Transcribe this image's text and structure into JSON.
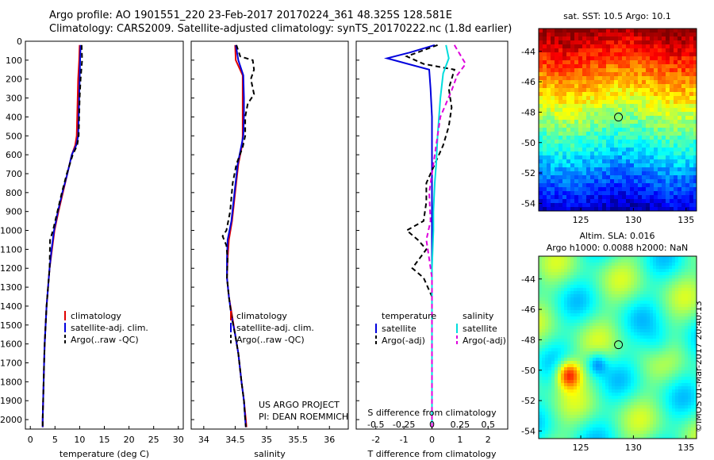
{
  "header": {
    "line1": "Argo profile: AO 1901551_220 23-Feb-2017 20170224_361 48.325S 128.581E",
    "line2": "Climatology: CARS2009. Satellite-adjusted climatology: synTS_20170222.nc (1.8d earlier)"
  },
  "credit": "©IMOS 01-Mar-2017 20:40:13",
  "project": {
    "line1": "US ARGO PROJECT",
    "line2": "PI: DEAN ROEMMICH"
  },
  "colors": {
    "climatology": "#e00000",
    "satellite": "#0000dd",
    "argo": "#000000",
    "sal_satellite": "#00dddd",
    "sal_argo": "#dd00dd"
  },
  "chart_data": [
    {
      "type": "line",
      "panel": "temperature",
      "xlabel": "temperature (deg C)",
      "ylabel": "",
      "xlim": [
        -1,
        31
      ],
      "ylim": [
        2050,
        0
      ],
      "xticks": [
        "0",
        "5",
        "10",
        "15",
        "20",
        "25",
        "30"
      ],
      "yticks": [
        "0",
        "100",
        "200",
        "300",
        "400",
        "500",
        "600",
        "700",
        "800",
        "900",
        "1000",
        "1100",
        "1200",
        "1300",
        "1400",
        "1500",
        "1600",
        "1700",
        "1800",
        "1900",
        "2000"
      ],
      "legend": [
        "climatology",
        "satellite-adj. clim.",
        "Argo(..raw -QC)"
      ],
      "series": [
        {
          "name": "climatology",
          "points": [
            [
              10.0,
              20
            ],
            [
              9.9,
              100
            ],
            [
              9.7,
              200
            ],
            [
              9.6,
              300
            ],
            [
              9.5,
              400
            ],
            [
              9.4,
              500
            ],
            [
              9.1,
              550
            ],
            [
              8.4,
              600
            ],
            [
              7.5,
              700
            ],
            [
              6.6,
              800
            ],
            [
              5.7,
              900
            ],
            [
              4.9,
              1000
            ],
            [
              4.4,
              1100
            ],
            [
              3.9,
              1200
            ],
            [
              3.6,
              1300
            ],
            [
              3.3,
              1400
            ],
            [
              3.1,
              1500
            ],
            [
              2.9,
              1600
            ],
            [
              2.8,
              1700
            ],
            [
              2.7,
              1800
            ],
            [
              2.6,
              1900
            ],
            [
              2.5,
              2000
            ],
            [
              2.5,
              2040
            ]
          ]
        },
        {
          "name": "satellite-adj. clim.",
          "points": [
            [
              10.2,
              20
            ],
            [
              10.1,
              100
            ],
            [
              10.0,
              200
            ],
            [
              9.9,
              300
            ],
            [
              9.8,
              400
            ],
            [
              9.7,
              500
            ],
            [
              9.3,
              550
            ],
            [
              8.4,
              600
            ],
            [
              7.5,
              700
            ],
            [
              6.5,
              800
            ],
            [
              5.6,
              900
            ],
            [
              4.8,
              1000
            ],
            [
              4.3,
              1100
            ],
            [
              3.9,
              1200
            ],
            [
              3.6,
              1300
            ],
            [
              3.3,
              1400
            ],
            [
              3.1,
              1500
            ],
            [
              2.9,
              1600
            ],
            [
              2.8,
              1700
            ],
            [
              2.7,
              1800
            ],
            [
              2.6,
              1900
            ],
            [
              2.5,
              2000
            ],
            [
              2.5,
              2040
            ]
          ]
        },
        {
          "name": "Argo(..raw -QC)",
          "points": [
            [
              10.4,
              20
            ],
            [
              10.5,
              100
            ],
            [
              10.2,
              200
            ],
            [
              10.0,
              300
            ],
            [
              9.9,
              400
            ],
            [
              9.8,
              500
            ],
            [
              9.5,
              550
            ],
            [
              8.6,
              600
            ],
            [
              7.4,
              700
            ],
            [
              6.4,
              800
            ],
            [
              5.5,
              900
            ],
            [
              4.6,
              1000
            ],
            [
              4.0,
              1050
            ],
            [
              3.9,
              1200
            ],
            [
              3.6,
              1300
            ],
            [
              3.3,
              1400
            ],
            [
              3.1,
              1500
            ],
            [
              2.9,
              1600
            ],
            [
              2.8,
              1700
            ],
            [
              2.7,
              1800
            ],
            [
              2.6,
              1900
            ],
            [
              2.5,
              2000
            ],
            [
              2.5,
              2040
            ]
          ]
        }
      ]
    },
    {
      "type": "line",
      "panel": "salinity",
      "xlabel": "salinity",
      "ylabel": "",
      "xlim": [
        33.8,
        36.3
      ],
      "ylim": [
        2050,
        0
      ],
      "xticks": [
        "34",
        "34.5",
        "35",
        "35.5",
        "36"
      ],
      "legend": [
        "climatology",
        "satellite-adj. clim.",
        "Argo(..raw -QC)"
      ],
      "series": [
        {
          "name": "climatology",
          "points": [
            [
              34.5,
              20
            ],
            [
              34.51,
              100
            ],
            [
              34.62,
              180
            ],
            [
              34.62,
              300
            ],
            [
              34.62,
              400
            ],
            [
              34.62,
              500
            ],
            [
              34.61,
              550
            ],
            [
              34.55,
              650
            ],
            [
              34.5,
              800
            ],
            [
              34.45,
              950
            ],
            [
              34.4,
              1050
            ],
            [
              34.38,
              1150
            ],
            [
              34.37,
              1250
            ],
            [
              34.4,
              1350
            ],
            [
              34.45,
              1450
            ],
            [
              34.5,
              1550
            ],
            [
              34.55,
              1650
            ],
            [
              34.6,
              1800
            ],
            [
              34.64,
              1900
            ],
            [
              34.67,
              2000
            ],
            [
              34.68,
              2040
            ]
          ]
        },
        {
          "name": "satellite-adj. clim.",
          "points": [
            [
              34.51,
              20
            ],
            [
              34.55,
              100
            ],
            [
              34.63,
              180
            ],
            [
              34.64,
              300
            ],
            [
              34.64,
              400
            ],
            [
              34.63,
              500
            ],
            [
              34.6,
              550
            ],
            [
              34.54,
              650
            ],
            [
              34.49,
              800
            ],
            [
              34.44,
              950
            ],
            [
              34.38,
              1050
            ],
            [
              34.37,
              1150
            ],
            [
              34.37,
              1250
            ],
            [
              34.4,
              1350
            ],
            [
              34.44,
              1450
            ],
            [
              34.5,
              1550
            ],
            [
              34.55,
              1650
            ],
            [
              34.6,
              1800
            ],
            [
              34.64,
              1900
            ],
            [
              34.66,
              2000
            ],
            [
              34.67,
              2040
            ]
          ]
        },
        {
          "name": "Argo(..raw -QC)",
          "points": [
            [
              34.52,
              20
            ],
            [
              34.58,
              80
            ],
            [
              34.78,
              100
            ],
            [
              34.8,
              150
            ],
            [
              34.75,
              200
            ],
            [
              34.8,
              280
            ],
            [
              34.7,
              330
            ],
            [
              34.66,
              400
            ],
            [
              34.66,
              500
            ],
            [
              34.62,
              560
            ],
            [
              34.52,
              650
            ],
            [
              34.46,
              750
            ],
            [
              34.42,
              900
            ],
            [
              34.36,
              1000
            ],
            [
              34.3,
              1030
            ],
            [
              34.36,
              1080
            ],
            [
              34.38,
              1150
            ],
            [
              34.37,
              1250
            ],
            [
              34.4,
              1350
            ],
            [
              34.44,
              1450
            ],
            [
              34.5,
              1550
            ],
            [
              34.55,
              1650
            ],
            [
              34.6,
              1800
            ],
            [
              34.64,
              1900
            ],
            [
              34.66,
              2000
            ],
            [
              34.67,
              2040
            ]
          ]
        }
      ]
    },
    {
      "type": "line",
      "panel": "difference",
      "xlabel": "T difference from climatology",
      "xlabel_top": "S difference from climatology",
      "ylabel": "",
      "xlim": [
        -2.7,
        2.7
      ],
      "ylim": [
        2050,
        0
      ],
      "xticks": [
        "-2",
        "-1",
        "0",
        "1",
        "2"
      ],
      "xticks_top": [
        "-0.5",
        "-0.25",
        "0",
        "0.25",
        "0.5"
      ],
      "legend_titles": [
        "temperature",
        "salinity"
      ],
      "legend": [
        "satellite",
        "Argo(-adj)",
        "satellite",
        "Argo(-adj)"
      ],
      "series": [
        {
          "name": "temperature satellite",
          "points": [
            [
              0.1,
              20
            ],
            [
              -0.8,
              60
            ],
            [
              -1.6,
              90
            ],
            [
              -0.1,
              150
            ],
            [
              -0.05,
              250
            ],
            [
              0,
              400
            ],
            [
              0,
              600
            ],
            [
              0,
              1000
            ],
            [
              0,
              1500
            ],
            [
              0,
              2040
            ]
          ]
        },
        {
          "name": "temperature Argo(-adj)",
          "points": [
            [
              0.2,
              20
            ],
            [
              -0.9,
              80
            ],
            [
              -0.3,
              120
            ],
            [
              0.8,
              150
            ],
            [
              0.6,
              250
            ],
            [
              0.7,
              350
            ],
            [
              0.6,
              450
            ],
            [
              0.4,
              550
            ],
            [
              0.1,
              650
            ],
            [
              -0.2,
              750
            ],
            [
              -0.2,
              850
            ],
            [
              -0.3,
              950
            ],
            [
              -0.9,
              1000
            ],
            [
              -0.5,
              1050
            ],
            [
              -0.2,
              1100
            ],
            [
              -0.7,
              1200
            ],
            [
              -0.3,
              1250
            ],
            [
              0,
              1350
            ],
            [
              0,
              1500
            ],
            [
              0,
              2040
            ]
          ]
        },
        {
          "name": "salinity satellite",
          "points": [
            [
              0.5,
              20
            ],
            [
              0.6,
              90
            ],
            [
              0.4,
              170
            ],
            [
              0.3,
              300
            ],
            [
              0.2,
              500
            ],
            [
              0.15,
              650
            ],
            [
              0.1,
              750
            ],
            [
              0.05,
              900
            ],
            [
              0.05,
              1000
            ],
            [
              0,
              1200
            ],
            [
              0,
              1500
            ],
            [
              0,
              2040
            ]
          ]
        },
        {
          "name": "salinity Argo(-adj)",
          "points": [
            [
              0.8,
              20
            ],
            [
              1.2,
              120
            ],
            [
              0.9,
              180
            ],
            [
              0.7,
              260
            ],
            [
              0.3,
              400
            ],
            [
              0.15,
              550
            ],
            [
              0,
              700
            ],
            [
              -0.1,
              800
            ],
            [
              -0.05,
              950
            ],
            [
              -0.2,
              1050
            ],
            [
              -0.1,
              1150
            ],
            [
              0,
              1250
            ],
            [
              0,
              1500
            ],
            [
              0,
              2040
            ]
          ]
        }
      ]
    },
    {
      "type": "heatmap",
      "panel": "sst-map",
      "title": "sat. SST: 10.5 Argo: 10.1",
      "xlim": [
        121,
        136
      ],
      "ylim": [
        -54.5,
        -42.5
      ],
      "xticks": [
        "125",
        "130",
        "135"
      ],
      "yticks": [
        "-44",
        "-46",
        "-48",
        "-50",
        "-52",
        "-54"
      ],
      "marker": {
        "lon": 128.581,
        "lat": -48.325
      }
    },
    {
      "type": "heatmap",
      "panel": "sla-map",
      "title": "Altim. SLA: 0.016",
      "subtitle": "Argo h1000: 0.0088 h2000: NaN",
      "xlim": [
        121,
        136
      ],
      "ylim": [
        -54.5,
        -42.5
      ],
      "xticks": [
        "125",
        "130",
        "135"
      ],
      "yticks": [
        "-44",
        "-46",
        "-48",
        "-50",
        "-52",
        "-54"
      ],
      "marker": {
        "lon": 128.581,
        "lat": -48.325
      }
    }
  ]
}
